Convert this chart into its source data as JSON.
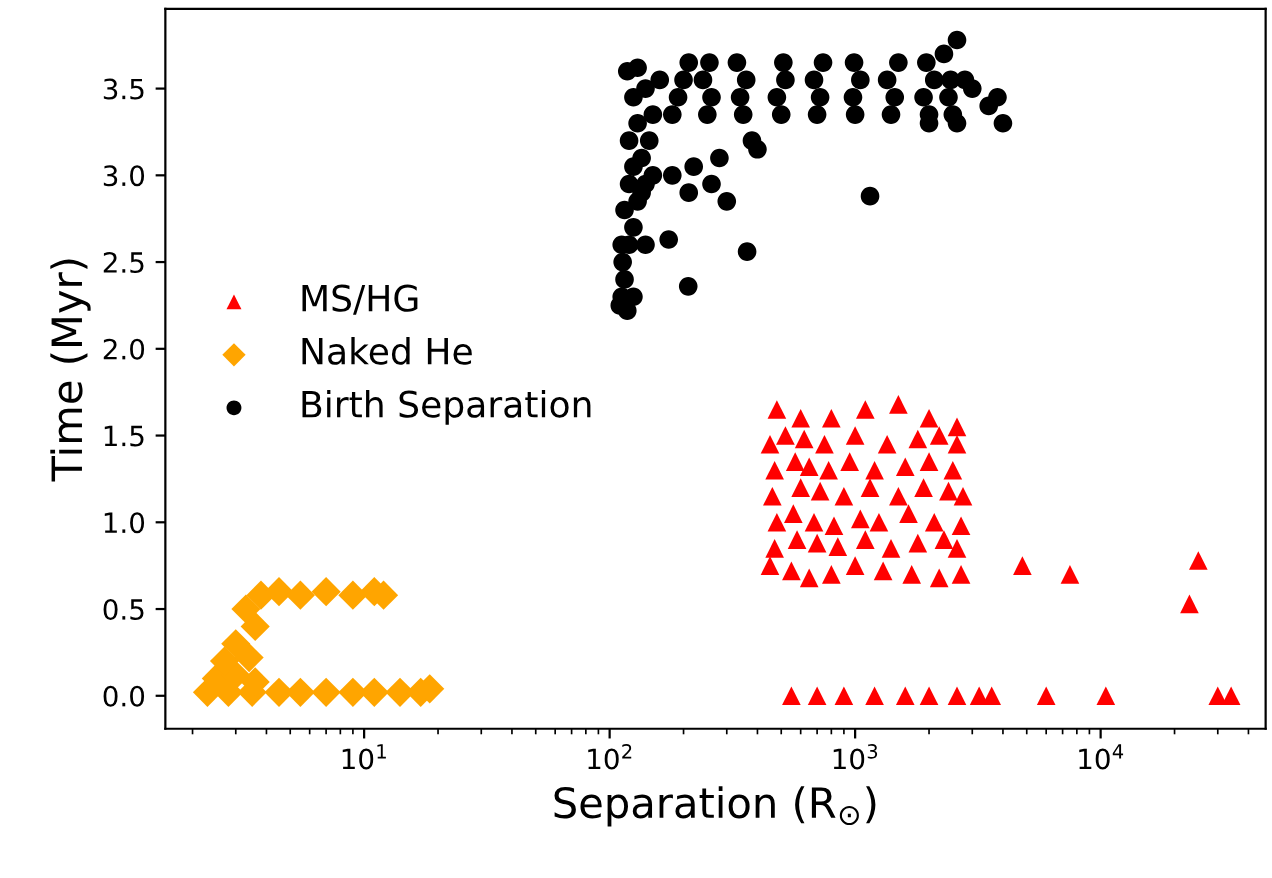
{
  "chart_data": {
    "type": "scatter",
    "xlabel": "Separation (R$_{⊙}$)",
    "ylabel": "Time (Myr)",
    "log": "x",
    "xlim": [
      1.55,
      47000
    ],
    "ylim": [
      -0.19,
      3.96
    ],
    "xticks": [
      {
        "value": 10,
        "label": "10$^{1}$"
      },
      {
        "value": 100,
        "label": "10$^{2}$"
      },
      {
        "value": 1000,
        "label": "10$^{3}$"
      },
      {
        "value": 10000,
        "label": "10$^{4}$"
      }
    ],
    "yticks": [
      {
        "value": 0,
        "label": "0.0"
      },
      {
        "value": 0.5,
        "label": "0.5"
      },
      {
        "value": 1,
        "label": "1.0"
      },
      {
        "value": 1.5,
        "label": "1.5"
      },
      {
        "value": 2,
        "label": "2.0"
      },
      {
        "value": 2.5,
        "label": "2.5"
      },
      {
        "value": 3,
        "label": "3.0"
      },
      {
        "value": 3.5,
        "label": "3.5"
      }
    ],
    "grid": false,
    "legend": "center left",
    "series": [
      {
        "name": "MS/HG",
        "color": "#ff0000",
        "marker": "triangle",
        "x": [
          450,
          550,
          650,
          800,
          1000,
          1300,
          1700,
          2200,
          2700,
          470,
          580,
          700,
          850,
          1100,
          1400,
          1800,
          2300,
          2600,
          480,
          560,
          680,
          820,
          1050,
          1250,
          1650,
          2100,
          2700,
          460,
          600,
          720,
          900,
          1150,
          1500,
          1900,
          2400,
          2750,
          470,
          570,
          650,
          780,
          950,
          1200,
          1600,
          2000,
          2500,
          450,
          520,
          620,
          750,
          1000,
          1350,
          1800,
          2200,
          2600,
          480,
          600,
          800,
          1100,
          1500,
          2000,
          2600,
          4800,
          7500,
          23000,
          25000,
          550,
          700,
          900,
          1200,
          1600,
          2000,
          2600,
          3200,
          3600,
          6000,
          10500,
          30000,
          34000
        ],
        "values": [
          0.75,
          0.72,
          0.68,
          0.7,
          0.75,
          0.72,
          0.7,
          0.68,
          0.7,
          0.85,
          0.9,
          0.88,
          0.86,
          0.9,
          0.85,
          0.88,
          0.9,
          0.85,
          1.0,
          1.05,
          1.0,
          0.98,
          1.02,
          1.0,
          1.05,
          1.0,
          0.98,
          1.15,
          1.2,
          1.18,
          1.15,
          1.2,
          1.15,
          1.2,
          1.18,
          1.15,
          1.3,
          1.35,
          1.32,
          1.3,
          1.35,
          1.3,
          1.32,
          1.35,
          1.3,
          1.45,
          1.5,
          1.48,
          1.45,
          1.5,
          1.45,
          1.48,
          1.5,
          1.45,
          1.65,
          1.6,
          1.6,
          1.65,
          1.68,
          1.6,
          1.55,
          0.75,
          0.7,
          0.53,
          0.78,
          0,
          0,
          0,
          0,
          0,
          0,
          0,
          0,
          0,
          0,
          0,
          0,
          0
        ]
      },
      {
        "name": "Naked He",
        "color": "#ffa500",
        "marker": "diamond",
        "x": [
          2.3,
          2.8,
          3.5,
          4.5,
          5.5,
          7,
          9,
          11,
          14,
          17,
          18.5,
          2.5,
          3.0,
          3.6,
          2.7,
          3.4,
          3.0,
          3.6,
          3.3,
          3.8,
          4.5,
          5.5,
          7,
          9,
          11,
          12
        ],
        "values": [
          0.02,
          0.02,
          0.02,
          0.02,
          0.02,
          0.02,
          0.02,
          0.02,
          0.02,
          0.02,
          0.04,
          0.1,
          0.12,
          0.08,
          0.2,
          0.22,
          0.3,
          0.4,
          0.5,
          0.58,
          0.6,
          0.58,
          0.6,
          0.58,
          0.6,
          0.58
        ]
      },
      {
        "name": "Birth Separation",
        "color": "#000000",
        "marker": "circle",
        "x": [
          110,
          112,
          118,
          115,
          113,
          112,
          120,
          125,
          140,
          125,
          115,
          130,
          135,
          120,
          140,
          125,
          135,
          150,
          120,
          145,
          130,
          150,
          125,
          140,
          118,
          130,
          160,
          363,
          209,
          174,
          1150,
          210,
          260,
          300,
          280,
          180,
          220,
          380,
          400,
          180,
          250,
          350,
          500,
          700,
          1000,
          1400,
          2000,
          2500,
          190,
          260,
          340,
          480,
          720,
          980,
          1450,
          1900,
          2400,
          200,
          240,
          360,
          520,
          680,
          1050,
          1350,
          2100,
          2450,
          210,
          255,
          330,
          510,
          740,
          990,
          1500,
          1950,
          3000,
          3500,
          3800,
          4000,
          2800,
          2300,
          2600,
          2600,
          2000
        ],
        "values": [
          2.25,
          2.3,
          2.22,
          2.4,
          2.5,
          2.6,
          2.6,
          2.3,
          2.6,
          2.7,
          2.8,
          2.85,
          2.9,
          2.95,
          2.95,
          3.05,
          3.1,
          3.0,
          3.2,
          3.2,
          3.3,
          3.35,
          3.45,
          3.5,
          3.6,
          3.62,
          3.55,
          2.56,
          2.36,
          2.63,
          2.88,
          2.9,
          2.95,
          2.85,
          3.1,
          3.0,
          3.05,
          3.2,
          3.15,
          3.35,
          3.35,
          3.35,
          3.35,
          3.35,
          3.35,
          3.35,
          3.35,
          3.35,
          3.45,
          3.45,
          3.45,
          3.45,
          3.45,
          3.45,
          3.45,
          3.45,
          3.45,
          3.55,
          3.55,
          3.55,
          3.55,
          3.55,
          3.55,
          3.55,
          3.55,
          3.55,
          3.65,
          3.65,
          3.65,
          3.65,
          3.65,
          3.65,
          3.65,
          3.65,
          3.5,
          3.4,
          3.45,
          3.3,
          3.55,
          3.7,
          3.78,
          3.3,
          3.3
        ]
      }
    ]
  }
}
